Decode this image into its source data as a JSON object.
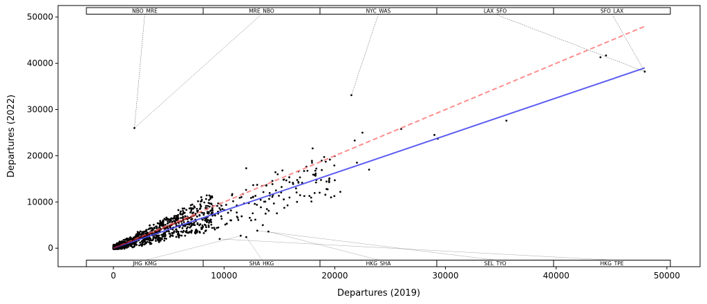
{
  "chart_data": {
    "type": "scatter",
    "xlabel": "Departures (2019)",
    "ylabel": "Departures (2022)",
    "xlim": [
      -5000,
      53000
    ],
    "ylim": [
      -4000,
      52500
    ],
    "x_ticks": [
      0,
      10000,
      20000,
      30000,
      40000,
      50000
    ],
    "y_ticks": [
      0,
      10000,
      20000,
      30000,
      40000,
      50000
    ],
    "grid": false,
    "colors": {
      "points": "#000000",
      "equal_line": "#ff7f7f",
      "fit_line": "#4a4af0",
      "dense_cluster_line": "#8b0000"
    },
    "reference_lines": [
      {
        "kind": "y=x",
        "style": "dashed",
        "color": "#ff7f7f",
        "x": [
          0,
          48000
        ],
        "y": [
          0,
          48000
        ]
      },
      {
        "kind": "fit",
        "style": "solid",
        "color": "#4a4af0",
        "x": [
          0,
          48000
        ],
        "y": [
          0,
          39000
        ]
      }
    ],
    "highlighted_points": [
      {
        "x": 1900,
        "y": 26000
      },
      {
        "x": 21500,
        "y": 33100
      },
      {
        "x": 48000,
        "y": 38200
      },
      {
        "x": 44000,
        "y": 41300
      },
      {
        "x": 44500,
        "y": 41700
      },
      {
        "x": 22500,
        "y": 25000
      },
      {
        "x": 26000,
        "y": 25800
      },
      {
        "x": 21800,
        "y": 23300
      },
      {
        "x": 29000,
        "y": 24500
      },
      {
        "x": 29300,
        "y": 23700
      },
      {
        "x": 35500,
        "y": 27600
      },
      {
        "x": 18000,
        "y": 21600
      },
      {
        "x": 12000,
        "y": 17300
      },
      {
        "x": 20500,
        "y": 12200
      },
      {
        "x": 23100,
        "y": 17000
      },
      {
        "x": 22000,
        "y": 18500
      },
      {
        "x": 19500,
        "y": 15000
      },
      {
        "x": 20000,
        "y": 14700
      },
      {
        "x": 13000,
        "y": 3800
      },
      {
        "x": 13500,
        "y": 5000
      },
      {
        "x": 14000,
        "y": 3600
      },
      {
        "x": 11500,
        "y": 2700
      },
      {
        "x": 12000,
        "y": 2400
      },
      {
        "x": 9600,
        "y": 2000
      }
    ],
    "top_labels": [
      {
        "label": "NBO_MRE",
        "x": 1900,
        "y": 26000
      },
      {
        "label": "MRE_NBO",
        "x": 1900,
        "y": 26000
      },
      {
        "label": "NYC_WAS",
        "x": 21500,
        "y": 33100
      },
      {
        "label": "LAX_SFO",
        "x": 48000,
        "y": 38200
      },
      {
        "label": "SFO_LAX",
        "x": 48000,
        "y": 38200
      }
    ],
    "bottom_labels": [
      {
        "label": "JHG_KMG",
        "x": 11500,
        "y": 2700
      },
      {
        "label": "SHA_HKG",
        "x": 12000,
        "y": 2400
      },
      {
        "label": "HKG_SHA",
        "x": 14000,
        "y": 3600
      },
      {
        "label": "SEL_TYO",
        "x": 13000,
        "y": 3800
      },
      {
        "label": "HKG_TPE",
        "x": 9600,
        "y": 2000
      }
    ]
  }
}
